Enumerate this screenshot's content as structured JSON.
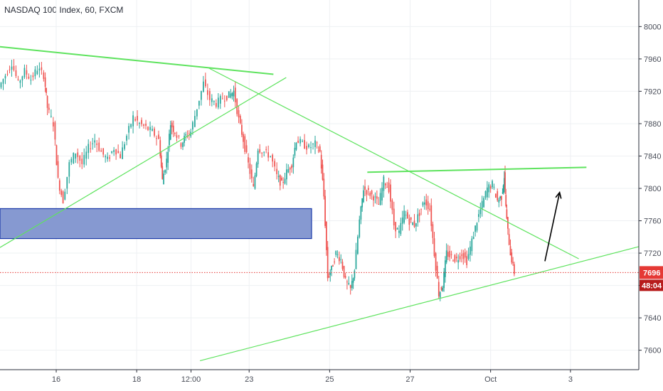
{
  "header": {
    "title": "NASDAQ 100 Index, 60, FXCM"
  },
  "colors": {
    "up": "#26a69a",
    "down": "#ef5350",
    "trend": "#5ee35e",
    "zone_fill": "#7f93cf",
    "zone_stroke": "#1c3aa9",
    "price_line": "#e53935",
    "arrow": "#000000",
    "grid": "#eef0f3",
    "axis": "#2a2e39"
  },
  "chart_data": {
    "type": "candlestick",
    "title": "NASDAQ 100 Index, 60, FXCM",
    "ylim": [
      7583,
      8017
    ],
    "y_ticks": [
      7600,
      7640,
      7680,
      7720,
      7760,
      7800,
      7840,
      7880,
      7920,
      7960,
      8000
    ],
    "y_tick_labels": [
      "7600",
      "7640",
      "7680",
      "7720",
      "7760",
      "7800",
      "7840",
      "7880",
      "7920",
      "7960",
      "8000"
    ],
    "x_ticks": [
      {
        "label": "16",
        "t": 0.088
      },
      {
        "label": "18",
        "t": 0.214
      },
      {
        "label": "12:00",
        "t": 0.299
      },
      {
        "label": "23",
        "t": 0.39
      },
      {
        "label": "25",
        "t": 0.516
      },
      {
        "label": "27",
        "t": 0.642
      },
      {
        "label": "Oct",
        "t": 0.768
      },
      {
        "label": "3",
        "t": 0.893
      }
    ],
    "last_price": 7696,
    "last_price_label": "7696",
    "countdown": "48:04",
    "closes": [
      [
        0.0,
        7925
      ],
      [
        0.01,
        7940
      ],
      [
        0.02,
        7955
      ],
      [
        0.03,
        7930
      ],
      [
        0.04,
        7945
      ],
      [
        0.05,
        7935
      ],
      [
        0.06,
        7948
      ],
      [
        0.07,
        7940
      ],
      [
        0.075,
        7900
      ],
      [
        0.085,
        7880
      ],
      [
        0.092,
        7810
      ],
      [
        0.1,
        7785
      ],
      [
        0.11,
        7830
      ],
      [
        0.12,
        7845
      ],
      [
        0.13,
        7830
      ],
      [
        0.14,
        7850
      ],
      [
        0.15,
        7860
      ],
      [
        0.16,
        7845
      ],
      [
        0.17,
        7835
      ],
      [
        0.18,
        7850
      ],
      [
        0.19,
        7840
      ],
      [
        0.2,
        7865
      ],
      [
        0.21,
        7888
      ],
      [
        0.22,
        7880
      ],
      [
        0.23,
        7875
      ],
      [
        0.24,
        7870
      ],
      [
        0.25,
        7860
      ],
      [
        0.255,
        7810
      ],
      [
        0.262,
        7835
      ],
      [
        0.268,
        7880
      ],
      [
        0.275,
        7870
      ],
      [
        0.285,
        7855
      ],
      [
        0.292,
        7865
      ],
      [
        0.3,
        7870
      ],
      [
        0.31,
        7900
      ],
      [
        0.32,
        7930
      ],
      [
        0.33,
        7910
      ],
      [
        0.34,
        7905
      ],
      [
        0.35,
        7912
      ],
      [
        0.36,
        7915
      ],
      [
        0.367,
        7920
      ],
      [
        0.375,
        7885
      ],
      [
        0.382,
        7860
      ],
      [
        0.39,
        7830
      ],
      [
        0.398,
        7800
      ],
      [
        0.405,
        7850
      ],
      [
        0.415,
        7845
      ],
      [
        0.425,
        7840
      ],
      [
        0.435,
        7815
      ],
      [
        0.442,
        7805
      ],
      [
        0.45,
        7820
      ],
      [
        0.458,
        7830
      ],
      [
        0.465,
        7860
      ],
      [
        0.475,
        7855
      ],
      [
        0.485,
        7850
      ],
      [
        0.495,
        7855
      ],
      [
        0.502,
        7845
      ],
      [
        0.508,
        7790
      ],
      [
        0.514,
        7690
      ],
      [
        0.52,
        7700
      ],
      [
        0.527,
        7720
      ],
      [
        0.535,
        7712
      ],
      [
        0.542,
        7685
      ],
      [
        0.55,
        7675
      ],
      [
        0.556,
        7700
      ],
      [
        0.564,
        7760
      ],
      [
        0.57,
        7800
      ],
      [
        0.578,
        7795
      ],
      [
        0.586,
        7790
      ],
      [
        0.594,
        7780
      ],
      [
        0.602,
        7810
      ],
      [
        0.61,
        7800
      ],
      [
        0.618,
        7755
      ],
      [
        0.626,
        7745
      ],
      [
        0.634,
        7770
      ],
      [
        0.642,
        7760
      ],
      [
        0.65,
        7755
      ],
      [
        0.658,
        7770
      ],
      [
        0.666,
        7785
      ],
      [
        0.674,
        7775
      ],
      [
        0.681,
        7720
      ],
      [
        0.688,
        7670
      ],
      [
        0.694,
        7680
      ],
      [
        0.7,
        7720
      ],
      [
        0.708,
        7715
      ],
      [
        0.716,
        7712
      ],
      [
        0.724,
        7720
      ],
      [
        0.732,
        7710
      ],
      [
        0.74,
        7735
      ],
      [
        0.748,
        7760
      ],
      [
        0.756,
        7780
      ],
      [
        0.764,
        7800
      ],
      [
        0.772,
        7805
      ],
      [
        0.78,
        7785
      ],
      [
        0.786,
        7790
      ],
      [
        0.79,
        7815
      ],
      [
        0.794,
        7760
      ],
      [
        0.8,
        7720
      ],
      [
        0.806,
        7696
      ]
    ]
  }
}
